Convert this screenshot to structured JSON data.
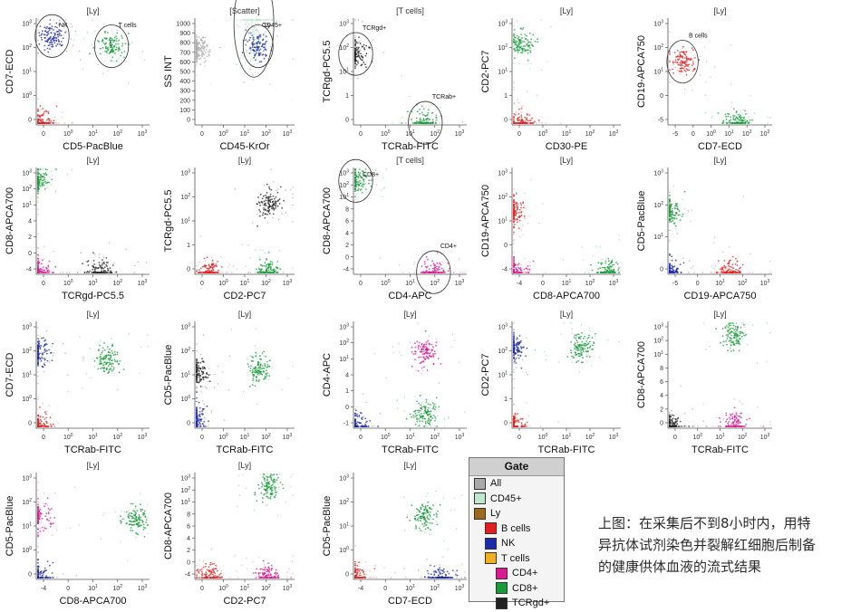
{
  "legend": {
    "title": "Gate",
    "items": [
      {
        "label": "All",
        "color": "#a9a9a9",
        "level": 0
      },
      {
        "label": "CD45+",
        "color": "#bfe6cf",
        "level": 0
      },
      {
        "label": "Ly",
        "color": "#9a6a1e",
        "level": 0
      },
      {
        "label": "B cells",
        "color": "#e02020",
        "level": 1
      },
      {
        "label": "NK",
        "color": "#1c2aa8",
        "level": 1
      },
      {
        "label": "T cells",
        "color": "#f0b020",
        "level": 1
      },
      {
        "label": "CD4+",
        "color": "#d81b8f",
        "level": 2
      },
      {
        "label": "CD8+",
        "color": "#1a9a3c",
        "level": 2
      },
      {
        "label": "TCRgd+",
        "color": "#222222",
        "level": 2
      }
    ]
  },
  "caption": {
    "line1": "上图：在采集后不到8小时内，用特",
    "line2": "异抗体试剂染色并裂解红细胞后制备",
    "line3": "的健康供体血液的流式结果"
  },
  "colors": {
    "b_cells": "#e02020",
    "nk": "#1c2aa8",
    "cd4": "#d81b8f",
    "cd8": "#1a9a3c",
    "tcrgd": "#222222",
    "cd45": "#bfe6cf",
    "all": "#a9a9a9",
    "ly": "#9a6a1e"
  },
  "chart_data": [
    {
      "type": "scatter",
      "title": "[Ly]",
      "xlabel": "CD5-PacBlue",
      "ylabel": "CD7-ECD",
      "xticks": [
        "0",
        "10^0",
        "10^1",
        "10^2",
        "10^3"
      ],
      "yticks": [
        "0",
        "10^0",
        "10^1",
        "10^2",
        "10^3"
      ],
      "gates": [
        {
          "label": "NK"
        },
        {
          "label": "T cells"
        }
      ],
      "populations": [
        {
          "gate": "NK",
          "x": 0.5,
          "y": 200
        },
        {
          "gate": "T cells",
          "x": 40,
          "y": 80
        },
        {
          "gate": "B cells",
          "x": 0.2,
          "y": 0
        }
      ]
    },
    {
      "type": "scatter",
      "title": "[Scatter]",
      "xlabel": "CD45-KrOr",
      "ylabel": "SS INT",
      "xticks": [
        "0",
        "10^0",
        "10^1",
        "10^2",
        "10^3"
      ],
      "yticks": [
        "0",
        "100",
        "200",
        "300",
        "400",
        "500",
        "600",
        "700",
        "800",
        "900",
        "1000"
      ],
      "gates": [
        {
          "label": "CD45+"
        },
        {
          "label": "Ly"
        }
      ],
      "populations": [
        {
          "gate": "Ly",
          "x": 30,
          "y": 80
        },
        {
          "gate": "CD45+",
          "x": 20,
          "y": 600
        },
        {
          "gate": "All",
          "x": 0,
          "y": 60
        }
      ]
    },
    {
      "type": "scatter",
      "title": "[T cells]",
      "xlabel": "TCRab-FITC",
      "ylabel": "TCRgd-PC5.5",
      "xticks": [
        "0",
        "10^0",
        "10^1",
        "10^2",
        "10^3"
      ],
      "yticks": [
        "0",
        "1",
        "10^1",
        "10^2",
        "10^3"
      ],
      "gates": [
        {
          "label": "TCRgd+"
        },
        {
          "label": "TCRab+"
        }
      ],
      "populations": [
        {
          "gate": "TCRgd+",
          "x": 0,
          "y": 40
        },
        {
          "gate": "TCRab+",
          "x": 30,
          "y": 0
        }
      ]
    },
    {
      "type": "scatter",
      "title": "[Ly]",
      "xlabel": "CD30-PE",
      "ylabel": "CD2-PC7",
      "xticks": [
        "0",
        "10^0",
        "10^1",
        "10^2",
        "10^3"
      ],
      "yticks": [
        "0",
        "1",
        "10^1",
        "10^2",
        "10^3"
      ],
      "gates": [],
      "populations": [
        {
          "gate": "T cells",
          "x": 0.3,
          "y": 100
        },
        {
          "gate": "B cells",
          "x": 0.3,
          "y": 0
        }
      ]
    },
    {
      "type": "scatter",
      "title": "[Ly]",
      "xlabel": "CD7-ECD",
      "ylabel": "CD19-APCA750",
      "xticks": [
        "-5",
        "0",
        "10^0",
        "10^1",
        "10^2",
        "10^3"
      ],
      "yticks": [
        "-5",
        "0",
        "10^1",
        "10^2",
        "10^3"
      ],
      "gates": [
        {
          "label": "B cells"
        }
      ],
      "populations": [
        {
          "gate": "B cells",
          "x": 0.5,
          "y": 20
        },
        {
          "gate": "T cells",
          "x": 40,
          "y": 0
        }
      ]
    },
    {
      "type": "scatter",
      "title": "[Ly]",
      "xlabel": "TCRgd-PC5.5",
      "ylabel": "CD8-APCA700",
      "xticks": [
        "0",
        "10^0",
        "10^1",
        "10^2",
        "10^3"
      ],
      "yticks": [
        "-4",
        "0",
        "2",
        "4",
        "10^1",
        "10^2",
        "10^3"
      ],
      "gates": [],
      "populations": [
        {
          "gate": "CD8+",
          "x": 0,
          "y": 300
        },
        {
          "gate": "CD4+",
          "x": 0,
          "y": 0
        },
        {
          "gate": "TCRgd+",
          "x": 15,
          "y": 0
        }
      ]
    },
    {
      "type": "scatter",
      "title": "[Ly]",
      "xlabel": "CD2-PC7",
      "ylabel": "TCRgd-PC5.5",
      "xticks": [
        "0",
        "10^0",
        "10^1",
        "10^2",
        "10^3"
      ],
      "yticks": [
        "0",
        "1",
        "10^1",
        "10^2",
        "10^3"
      ],
      "gates": [],
      "populations": [
        {
          "gate": "TCRgd+",
          "x": 80,
          "y": 40
        },
        {
          "gate": "B cells",
          "x": 0.5,
          "y": 0
        },
        {
          "gate": "T cells",
          "x": 80,
          "y": 0
        }
      ]
    },
    {
      "type": "scatter",
      "title": "[T cells]",
      "xlabel": "CD4-APC",
      "ylabel": "CD8-APCA700",
      "xticks": [
        "0",
        "10^0",
        "10^1",
        "10^2",
        "10^3"
      ],
      "yticks": [
        "-4",
        "0",
        "2",
        "4",
        "6",
        "8",
        "10^1",
        "10^2",
        "10^3"
      ],
      "gates": [
        {
          "label": "CD8+"
        },
        {
          "label": "CD4+"
        }
      ],
      "populations": [
        {
          "gate": "CD8+",
          "x": 0,
          "y": 300
        },
        {
          "gate": "CD4+",
          "x": 60,
          "y": 0
        }
      ]
    },
    {
      "type": "scatter",
      "title": "[Ly]",
      "xlabel": "CD8-APCA700",
      "ylabel": "CD19-APCA750",
      "xticks": [
        "-4",
        "0",
        "10^1",
        "10^2",
        "10^3"
      ],
      "yticks": [
        "-4",
        "0",
        "10^1",
        "10^2",
        "10^3"
      ],
      "gates": [],
      "populations": [
        {
          "gate": "B cells",
          "x": 0,
          "y": 20
        },
        {
          "gate": "CD8+",
          "x": 300,
          "y": 0
        },
        {
          "gate": "CD4+",
          "x": 0,
          "y": 0
        }
      ]
    },
    {
      "type": "scatter",
      "title": "[Ly]",
      "xlabel": "CD19-APCA750",
      "ylabel": "CD5-PacBlue",
      "xticks": [
        "-5",
        "0",
        "10^1",
        "10^2",
        "10^3"
      ],
      "yticks": [
        "0",
        "10^1",
        "10^2",
        "10^3"
      ],
      "gates": [],
      "populations": [
        {
          "gate": "T cells",
          "x": 0,
          "y": 20
        },
        {
          "gate": "NK",
          "x": 0,
          "y": 0
        },
        {
          "gate": "B cells",
          "x": 20,
          "y": 0
        }
      ]
    },
    {
      "type": "scatter",
      "title": "[Ly]",
      "xlabel": "TCRab-FITC",
      "ylabel": "CD7-ECD",
      "xticks": [
        "0",
        "10^0",
        "10^1",
        "10^2",
        "10^3"
      ],
      "yticks": [
        "0",
        "10^0",
        "10^1",
        "10^2",
        "10^3"
      ],
      "gates": [],
      "populations": [
        {
          "gate": "NK",
          "x": 0,
          "y": 60
        },
        {
          "gate": "T cells",
          "x": 30,
          "y": 30
        },
        {
          "gate": "B cells",
          "x": 0,
          "y": 0
        }
      ]
    },
    {
      "type": "scatter",
      "title": "[Ly]",
      "xlabel": "TCRab-FITC",
      "ylabel": "CD5-PacBlue",
      "xticks": [
        "0",
        "10^0",
        "10^1",
        "10^2",
        "10^3"
      ],
      "yticks": [
        "0",
        "10^0",
        "10^1",
        "10^2",
        "10^3"
      ],
      "gates": [],
      "populations": [
        {
          "gate": "TCRgd+",
          "x": 0,
          "y": 10
        },
        {
          "gate": "T cells",
          "x": 30,
          "y": 15
        },
        {
          "gate": "NK",
          "x": 0,
          "y": 0.3
        }
      ]
    },
    {
      "type": "scatter",
      "title": "[Ly]",
      "xlabel": "TCRab-FITC",
      "ylabel": "CD4-APC",
      "xticks": [
        "0",
        "10^0",
        "10^1",
        "10^2",
        "10^3"
      ],
      "yticks": [
        "-1",
        "0",
        "1",
        "4",
        "10^1",
        "10^2",
        "10^3"
      ],
      "gates": [],
      "populations": [
        {
          "gate": "CD4+",
          "x": 30,
          "y": 60
        },
        {
          "gate": "CD8+",
          "x": 30,
          "y": 0.5
        },
        {
          "gate": "NK",
          "x": 0,
          "y": 0
        }
      ]
    },
    {
      "type": "scatter",
      "title": "[Ly]",
      "xlabel": "TCRab-FITC",
      "ylabel": "CD2-PC7",
      "xticks": [
        "0",
        "10^0",
        "10^1",
        "10^2",
        "10^3"
      ],
      "yticks": [
        "0",
        "1",
        "10^1",
        "10^2",
        "10^3"
      ],
      "gates": [],
      "populations": [
        {
          "gate": "NK",
          "x": 0,
          "y": 100
        },
        {
          "gate": "T cells",
          "x": 30,
          "y": 100
        },
        {
          "gate": "B cells",
          "x": 0,
          "y": 0
        }
      ]
    },
    {
      "type": "scatter",
      "title": "[Ly]",
      "xlabel": "TCRab-FITC",
      "ylabel": "CD8-APCA700",
      "xticks": [
        "0",
        "10^0",
        "10^1",
        "10^2",
        "10^3"
      ],
      "yticks": [
        "0",
        "2",
        "4",
        "6",
        "8",
        "10^1",
        "10^2",
        "10^3"
      ],
      "gates": [],
      "populations": [
        {
          "gate": "CD8+",
          "x": 30,
          "y": 300
        },
        {
          "gate": "CD4+",
          "x": 30,
          "y": 0
        },
        {
          "gate": "TCRgd+",
          "x": 0,
          "y": 0
        }
      ]
    },
    {
      "type": "scatter",
      "title": "[Ly]",
      "xlabel": "CD8-APCA700",
      "ylabel": "CD5-PacBlue",
      "xticks": [
        "-4",
        "0",
        "10^1",
        "10^2",
        "10^3"
      ],
      "yticks": [
        "0",
        "10^0",
        "10^1",
        "10^2",
        "10^3"
      ],
      "gates": [],
      "populations": [
        {
          "gate": "CD4+",
          "x": 0,
          "y": 20
        },
        {
          "gate": "CD8+",
          "x": 300,
          "y": 15
        },
        {
          "gate": "NK",
          "x": 0,
          "y": 0
        }
      ]
    },
    {
      "type": "scatter",
      "title": "[Ly]",
      "xlabel": "CD2-PC7",
      "ylabel": "CD8-APCA700",
      "xticks": [
        "0",
        "10^0",
        "10^1",
        "10^2",
        "10^3"
      ],
      "yticks": [
        "-4",
        "0",
        "2",
        "4",
        "6",
        "8",
        "10^1",
        "10^2",
        "10^3"
      ],
      "gates": [],
      "populations": [
        {
          "gate": "CD8+",
          "x": 80,
          "y": 300
        },
        {
          "gate": "B cells",
          "x": 0.5,
          "y": 0
        },
        {
          "gate": "CD4+",
          "x": 80,
          "y": 0
        }
      ]
    },
    {
      "type": "scatter",
      "title": "[Ly]",
      "xlabel": "CD7-ECD",
      "ylabel": "CD5-PacBlue",
      "xticks": [
        "-4",
        "0",
        "10^1",
        "10^2",
        "10^3"
      ],
      "yticks": [
        "0",
        "10^0",
        "10^1",
        "10^2",
        "10^3"
      ],
      "gates": [],
      "populations": [
        {
          "gate": "T cells",
          "x": 30,
          "y": 20
        },
        {
          "gate": "B cells",
          "x": 0,
          "y": 0
        },
        {
          "gate": "NK",
          "x": 100,
          "y": 0
        }
      ]
    }
  ]
}
